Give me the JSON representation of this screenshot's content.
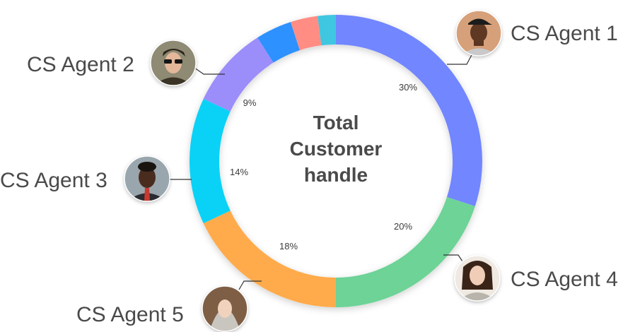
{
  "chart_data": {
    "type": "pie",
    "center_label": [
      "Total",
      "Customer",
      "handle"
    ],
    "slices": [
      {
        "name": "CS Agent 1",
        "value": 30,
        "label": "30%",
        "color": "#7186ff"
      },
      {
        "name": "CS Agent 4",
        "value": 20,
        "label": "20%",
        "color": "#6dd396"
      },
      {
        "name": "CS Agent 5",
        "value": 18,
        "label": "18%",
        "color": "#ffab4c"
      },
      {
        "name": "CS Agent 3",
        "value": 14,
        "label": "14%",
        "color": "#0ad2f6"
      },
      {
        "name": "CS Agent 2",
        "value": 9,
        "label": "9%",
        "color": "#9b8dfa"
      },
      {
        "name": "",
        "value": 4,
        "label": "",
        "color": "#2d91ff"
      },
      {
        "name": "",
        "value": 3,
        "label": "",
        "color": "#ff8d84"
      },
      {
        "name": "",
        "value": 2,
        "label": "",
        "color": "#3fc6e1"
      }
    ]
  },
  "agents": [
    {
      "name": "CS Agent 1",
      "avatar_icon": "agent-1-avatar-icon"
    },
    {
      "name": "CS Agent 2",
      "avatar_icon": "agent-2-avatar-icon"
    },
    {
      "name": "CS Agent 3",
      "avatar_icon": "agent-3-avatar-icon"
    },
    {
      "name": "CS Agent 4",
      "avatar_icon": "agent-4-avatar-icon"
    },
    {
      "name": "CS Agent 5",
      "avatar_icon": "agent-5-avatar-icon"
    }
  ]
}
